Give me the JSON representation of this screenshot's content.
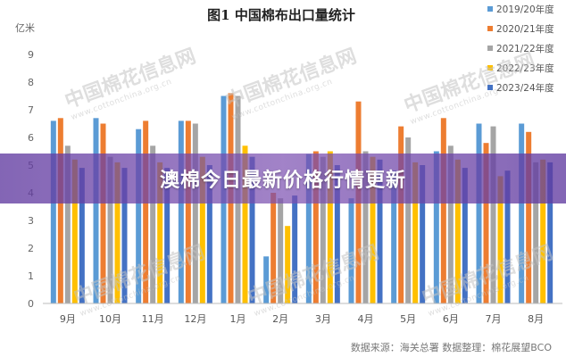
{
  "chart_data": {
    "type": "bar",
    "title": "图1  中国棉布出口量统计",
    "ylabel": "亿米",
    "ylim": [
      0,
      10
    ],
    "yticks": [
      "0",
      "1",
      "2",
      "3",
      "4",
      "5",
      "6",
      "7",
      "8",
      "9"
    ],
    "categories": [
      "9月",
      "10月",
      "11月",
      "12月",
      "1月",
      "2月",
      "3月",
      "4月",
      "5月",
      "6月",
      "7月",
      "8月"
    ],
    "series": [
      {
        "name": "2019/20年度",
        "color": "#5b9bd5",
        "values": [
          6.6,
          6.7,
          6.3,
          6.6,
          7.5,
          1.7,
          5.4,
          3.8,
          4.8,
          5.5,
          6.5,
          6.5
        ]
      },
      {
        "name": "2020/21年度",
        "color": "#ed7d31",
        "values": [
          6.7,
          6.5,
          6.6,
          6.6,
          7.6,
          4.0,
          5.5,
          7.3,
          6.4,
          6.7,
          5.8,
          6.2
        ]
      },
      {
        "name": "2021/22年度",
        "color": "#a5a5a5",
        "values": [
          5.7,
          5.3,
          5.7,
          6.5,
          7.5,
          3.8,
          5.3,
          5.5,
          6.0,
          5.7,
          6.4,
          5.1
        ]
      },
      {
        "name": "2022/23年度",
        "color": "#ffc000",
        "values": [
          5.2,
          5.1,
          5.1,
          5.3,
          5.7,
          2.8,
          5.5,
          5.3,
          5.1,
          5.2,
          4.6,
          5.2
        ]
      },
      {
        "name": "2023/24年度",
        "color": "#4472c4",
        "values": [
          4.9,
          4.9,
          4.9,
          5.0,
          5.3,
          3.9,
          5.0,
          5.2,
          5.0,
          4.9,
          4.8,
          5.1
        ]
      }
    ],
    "grid": false,
    "legend": "top-right",
    "source_note": "数据来源：海关总署  数据整理：棉花展望BCO"
  },
  "banner": {
    "text": "澳棉今日最新价格行情更新"
  },
  "watermark": {
    "text": "中国棉花信息网",
    "url": "www.cottonchina.org.cn"
  }
}
